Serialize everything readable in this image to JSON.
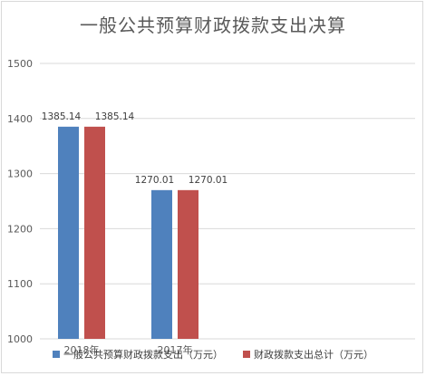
{
  "chart_data": {
    "type": "bar",
    "title": "一般公共预算财政拨款支出决算",
    "categories": [
      "2018年",
      "2017年"
    ],
    "series": [
      {
        "name": "一般公共预算财政拨款支出（万元）",
        "values": [
          1385.14,
          1270.01
        ],
        "color": "#4f81bd"
      },
      {
        "name": "财政拨款支出总计（万元）",
        "values": [
          1385.14,
          1270.01
        ],
        "color": "#c0504d"
      }
    ],
    "data_labels": [
      [
        "1385.14",
        "1270.01"
      ],
      [
        "1385.14",
        "1270.01"
      ]
    ],
    "ylim": [
      1000,
      1500
    ],
    "yticks": [
      "1000",
      "1100",
      "1200",
      "1300",
      "1400",
      "1500"
    ],
    "grid": true,
    "legend": "bottom"
  }
}
